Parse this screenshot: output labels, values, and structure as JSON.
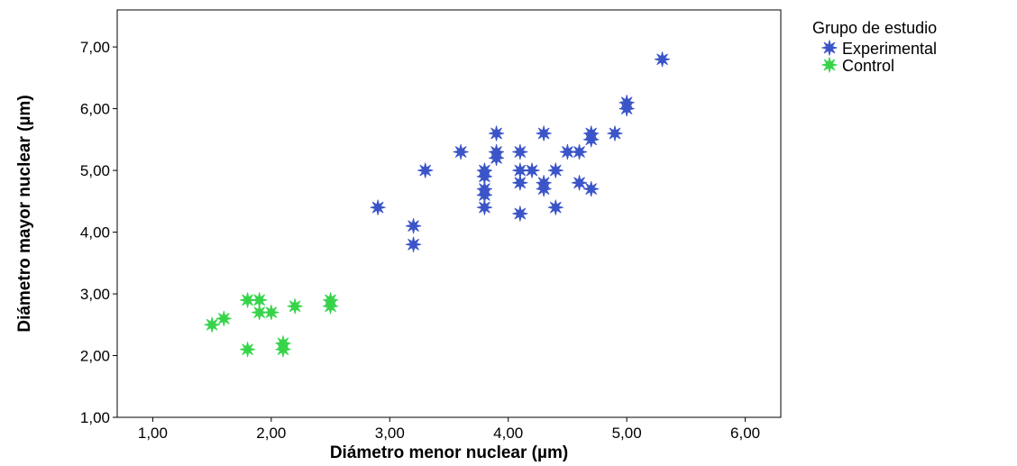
{
  "chart_data": {
    "type": "scatter",
    "xlabel": "Diámetro menor nuclear (µm)",
    "ylabel": "Diámetro mayor nuclear (µm)",
    "xlim": [
      0.7,
      6.3
    ],
    "ylim": [
      1.0,
      7.6
    ],
    "xticks": [
      1,
      2,
      3,
      4,
      5,
      6
    ],
    "yticks": [
      1,
      2,
      3,
      4,
      5,
      6,
      7
    ],
    "xtick_labels": [
      "1,00",
      "2,00",
      "3,00",
      "4,00",
      "5,00",
      "6,00"
    ],
    "ytick_labels": [
      "1,00",
      "2,00",
      "3,00",
      "4,00",
      "5,00",
      "6,00",
      "7,00"
    ],
    "grid": false,
    "legend": {
      "title": "Grupo de estudio",
      "placement": "outside-top-right"
    },
    "series": [
      {
        "name": "Experimental",
        "color": "#3b55c8",
        "points": [
          [
            5.3,
            6.8
          ],
          [
            5.0,
            6.1
          ],
          [
            5.0,
            6.0
          ],
          [
            4.9,
            5.6
          ],
          [
            4.7,
            5.6
          ],
          [
            4.7,
            5.5
          ],
          [
            4.3,
            5.6
          ],
          [
            3.9,
            5.6
          ],
          [
            3.6,
            5.3
          ],
          [
            3.9,
            5.3
          ],
          [
            3.9,
            5.2
          ],
          [
            4.1,
            5.3
          ],
          [
            4.5,
            5.3
          ],
          [
            4.6,
            5.3
          ],
          [
            3.3,
            5.0
          ],
          [
            3.8,
            5.0
          ],
          [
            3.8,
            4.9
          ],
          [
            4.1,
            5.0
          ],
          [
            4.2,
            5.0
          ],
          [
            4.4,
            5.0
          ],
          [
            4.1,
            4.8
          ],
          [
            4.3,
            4.8
          ],
          [
            4.3,
            4.7
          ],
          [
            4.6,
            4.8
          ],
          [
            4.7,
            4.7
          ],
          [
            3.8,
            4.7
          ],
          [
            3.8,
            4.6
          ],
          [
            3.8,
            4.4
          ],
          [
            4.4,
            4.4
          ],
          [
            4.1,
            4.3
          ],
          [
            2.9,
            4.4
          ],
          [
            3.2,
            4.1
          ],
          [
            3.2,
            3.8
          ]
        ]
      },
      {
        "name": "Control",
        "color": "#37d44b",
        "points": [
          [
            1.5,
            2.5
          ],
          [
            1.6,
            2.6
          ],
          [
            1.8,
            2.9
          ],
          [
            1.9,
            2.9
          ],
          [
            1.9,
            2.7
          ],
          [
            2.0,
            2.7
          ],
          [
            2.2,
            2.8
          ],
          [
            2.5,
            2.9
          ],
          [
            2.5,
            2.8
          ],
          [
            1.8,
            2.1
          ],
          [
            2.1,
            2.2
          ],
          [
            2.1,
            2.1
          ]
        ]
      }
    ]
  }
}
